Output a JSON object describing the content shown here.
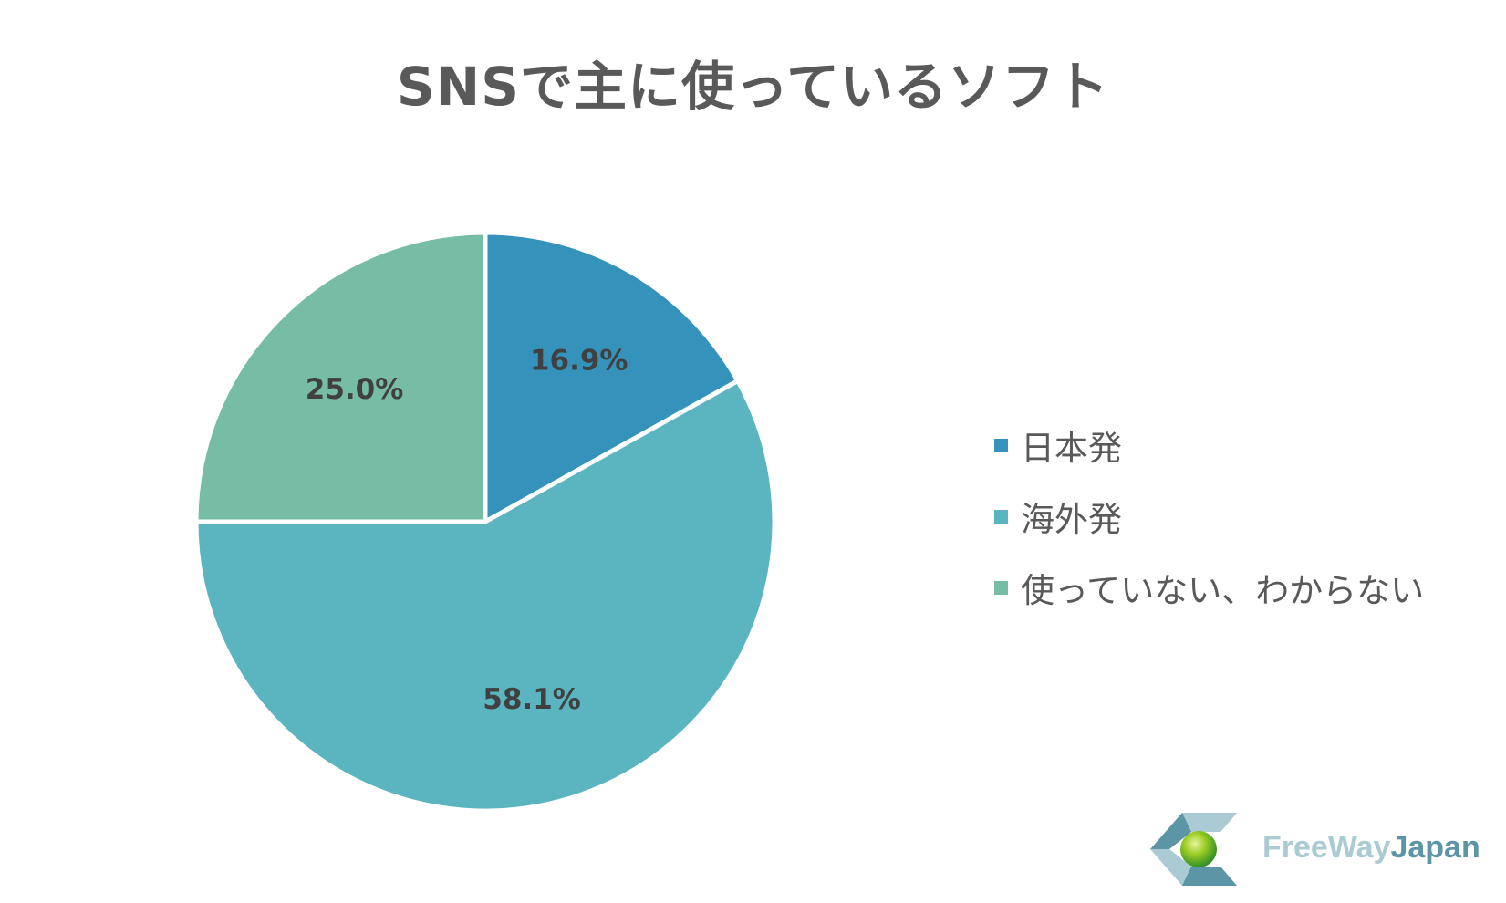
{
  "chart_data": {
    "type": "pie",
    "title": "SNSで主に使っているソフト",
    "slices": [
      {
        "label": "日本発",
        "value": 16.9,
        "display": "16.9%",
        "color": "#3593bb"
      },
      {
        "label": "海外発",
        "value": 58.1,
        "display": "58.1%",
        "color": "#5ab5c1"
      },
      {
        "label": "使っていない、わからない",
        "value": 25.0,
        "display": "25.0%",
        "color": "#77bca5"
      }
    ],
    "start_angle_deg": 0,
    "direction": "clockwise",
    "legend_position": "right"
  },
  "logo": {
    "text_part1": "FreeWay",
    "text_part2": "Japan",
    "colors": {
      "light": "#aacbd3",
      "dark": "#5b95a6",
      "ball": "#8cc21f"
    }
  }
}
